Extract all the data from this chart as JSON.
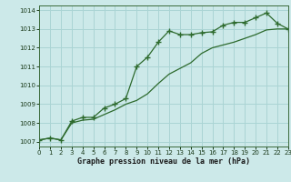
{
  "line1_x": [
    0,
    1,
    2,
    3,
    4,
    5,
    6,
    7,
    8,
    9,
    10,
    11,
    12,
    13,
    14,
    15,
    16,
    17,
    18,
    19,
    20,
    21,
    22,
    23
  ],
  "line1_y": [
    1007.1,
    1007.2,
    1007.1,
    1008.1,
    1008.3,
    1008.3,
    1008.8,
    1009.0,
    1009.3,
    1011.0,
    1011.5,
    1012.3,
    1012.9,
    1012.7,
    1012.7,
    1012.8,
    1012.85,
    1013.2,
    1013.35,
    1013.35,
    1013.6,
    1013.85,
    1013.3,
    1013.0
  ],
  "line2_x": [
    0,
    1,
    2,
    3,
    4,
    5,
    6,
    7,
    8,
    9,
    10,
    11,
    12,
    13,
    14,
    15,
    16,
    17,
    18,
    19,
    20,
    21,
    22,
    23
  ],
  "line2_y": [
    1007.1,
    1007.2,
    1007.1,
    1008.0,
    1008.15,
    1008.2,
    1008.45,
    1008.7,
    1009.0,
    1009.2,
    1009.55,
    1010.1,
    1010.6,
    1010.9,
    1011.2,
    1011.7,
    1012.0,
    1012.15,
    1012.3,
    1012.5,
    1012.7,
    1012.95,
    1013.0,
    1013.0
  ],
  "line_color": "#2d6a2d",
  "marker": "+",
  "bg_color": "#cce9e9",
  "grid_color": "#aad4d4",
  "xlabel": "Graphe pression niveau de la mer (hPa)",
  "xlim": [
    0,
    23
  ],
  "ylim": [
    1006.75,
    1014.25
  ],
  "yticks": [
    1007,
    1008,
    1009,
    1010,
    1011,
    1012,
    1013,
    1014
  ],
  "xticks": [
    0,
    1,
    2,
    3,
    4,
    5,
    6,
    7,
    8,
    9,
    10,
    11,
    12,
    13,
    14,
    15,
    16,
    17,
    18,
    19,
    20,
    21,
    22,
    23
  ]
}
